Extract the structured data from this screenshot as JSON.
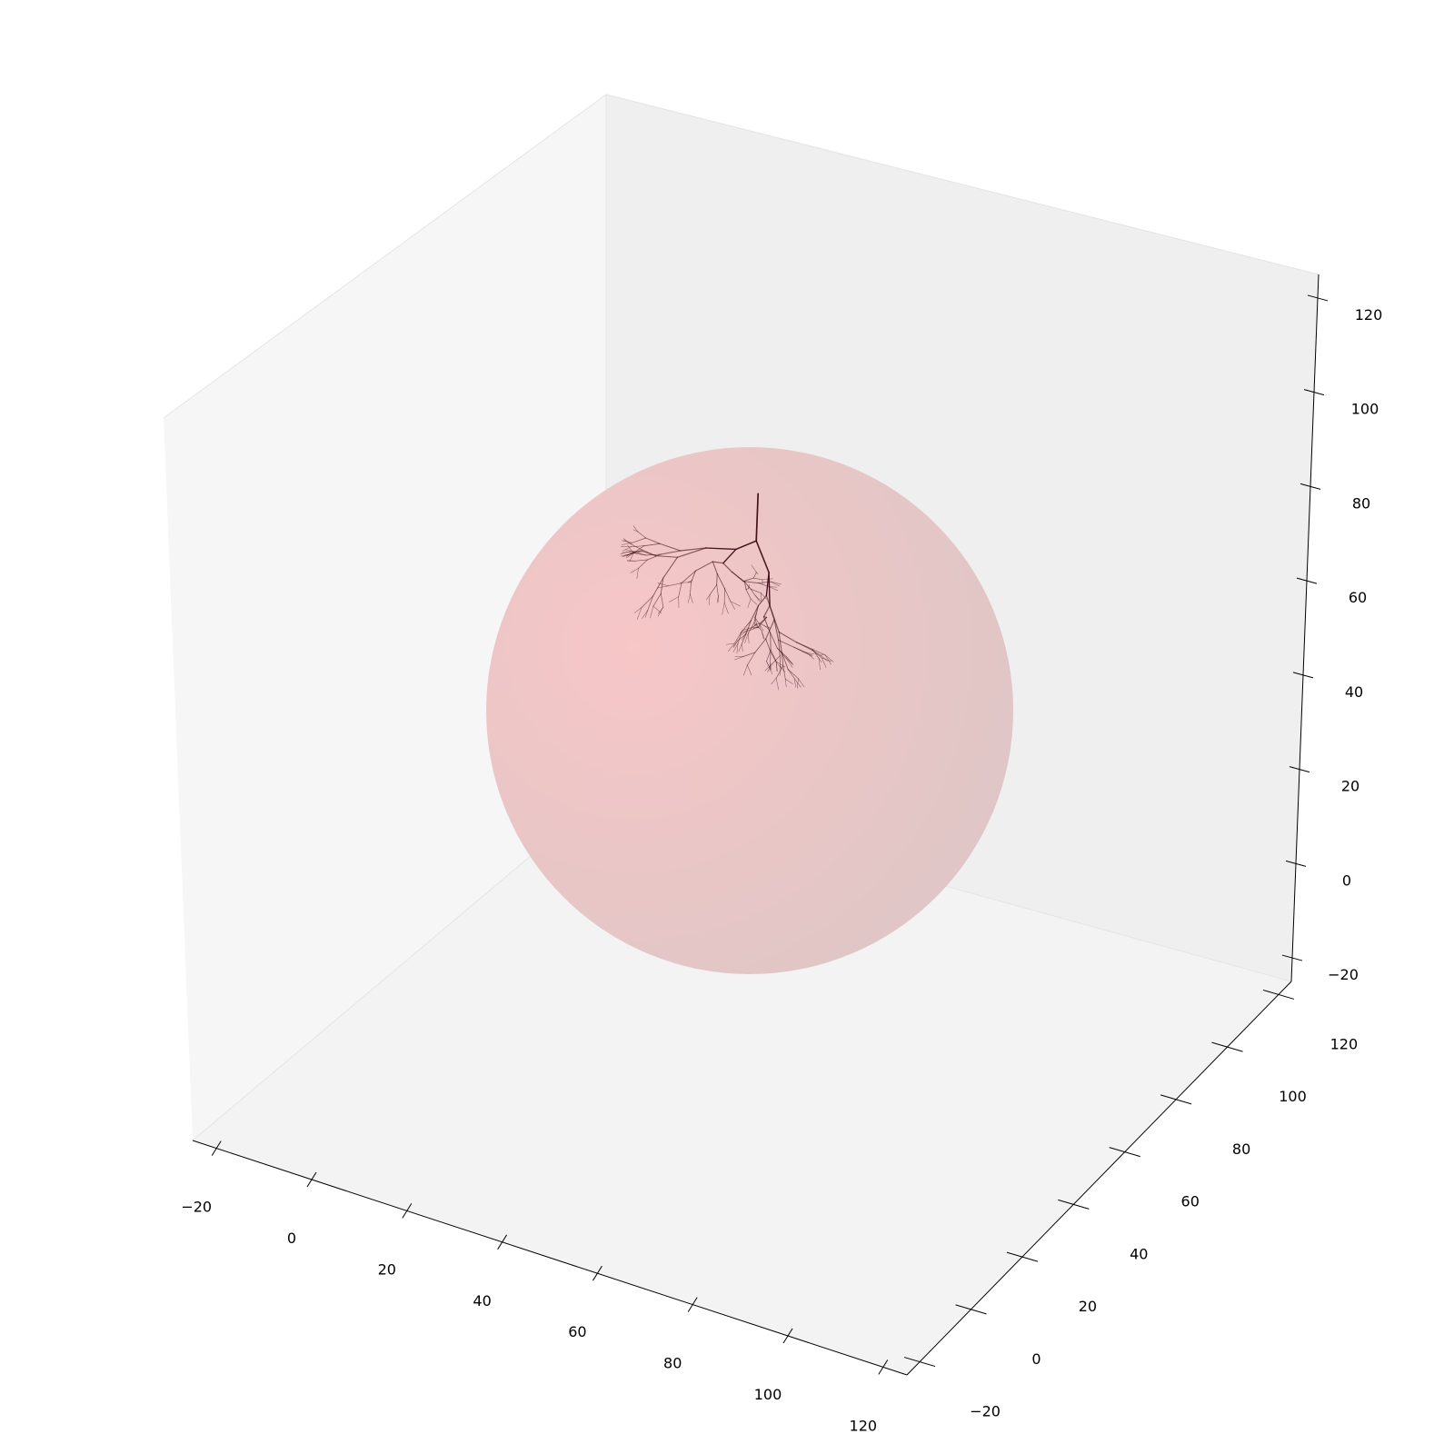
{
  "chart_data": {
    "type": "3d-line",
    "title": "",
    "xlabel": "",
    "ylabel": "",
    "zlabel": "",
    "grid": false,
    "xlim": [
      -25,
      125
    ],
    "ylim": [
      -25,
      125
    ],
    "zlim": [
      -25,
      125
    ],
    "x_ticks": [
      "−20",
      "0",
      "20",
      "40",
      "60",
      "80",
      "100",
      "120"
    ],
    "y_ticks": [
      "−20",
      "0",
      "20",
      "40",
      "60",
      "80",
      "100",
      "120"
    ],
    "z_ticks": [
      "−20",
      "0",
      "20",
      "40",
      "60",
      "80",
      "100",
      "120"
    ],
    "sphere": {
      "center": [
        50,
        50,
        50
      ],
      "radius": 58,
      "color": "#f4c3c4"
    },
    "tree": {
      "color": "#3a0a12",
      "root": [
        50,
        50,
        90
      ],
      "depth": 7,
      "segments_estimated": 255
    }
  },
  "colors": {
    "pane_left": "#f6f6f6",
    "pane_right": "#efefef",
    "pane_floor": "#f3f3f3",
    "sphere_light": "#f7c6c7",
    "sphere_dark": "#dcc6c6",
    "tree": "#3a0a12",
    "axis": "#000000"
  }
}
